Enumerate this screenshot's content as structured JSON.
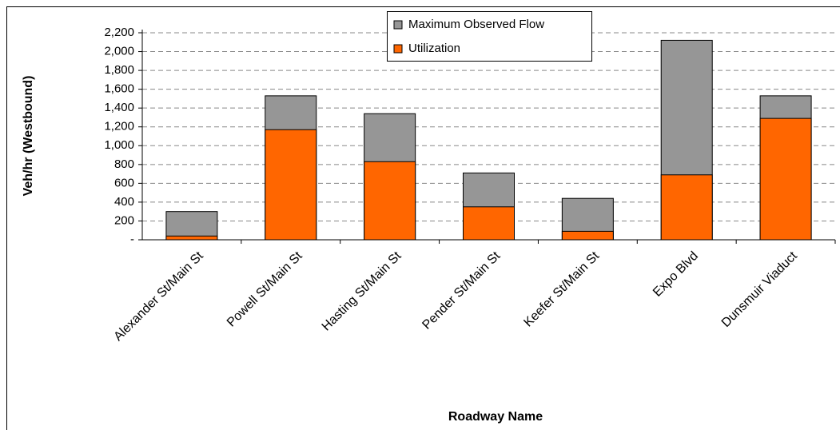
{
  "chart_data": {
    "type": "bar",
    "x_label": "Roadway Name",
    "y_label": "Veh/hr (Westbound)",
    "categories": [
      "Alexander St/Main St",
      "Powell St/Main St",
      "Hasting St/Main St",
      "Pender St/Main St",
      "Keefer St/Main St",
      "Expo Blvd",
      "Dunsmuir Viaduct"
    ],
    "series": [
      {
        "name": "Maximum Observed Flow",
        "color": "#969696",
        "values": [
          300,
          1530,
          1340,
          710,
          440,
          2120,
          1530
        ]
      },
      {
        "name": "Utilization",
        "color": "#ff6600",
        "values": [
          40,
          1170,
          830,
          350,
          90,
          690,
          1290
        ]
      }
    ],
    "ylim": [
      0,
      2200
    ],
    "yticks": [
      {
        "value": 0,
        "label": "-"
      },
      200,
      400,
      600,
      800,
      {
        "value": 1000,
        "label": "1,000"
      },
      {
        "value": 1200,
        "label": "1,200"
      },
      {
        "value": 1400,
        "label": "1,400"
      },
      {
        "value": 1600,
        "label": "1,600"
      },
      {
        "value": 1800,
        "label": "1,800"
      },
      {
        "value": 2000,
        "label": "2,000"
      },
      {
        "value": 2200,
        "label": "2,200"
      }
    ],
    "grid": true
  }
}
